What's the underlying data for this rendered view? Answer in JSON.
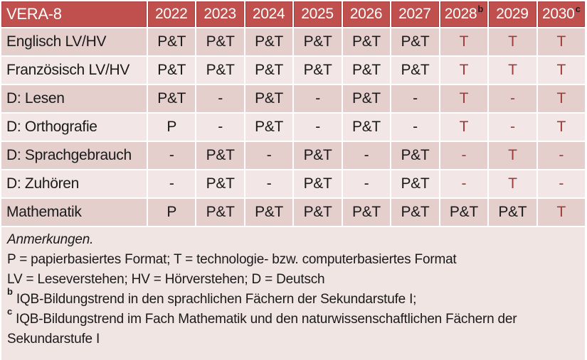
{
  "colors": {
    "header_bg": "#C0504D",
    "header_border": "#AC423F",
    "header_text": "#FFFFFF",
    "row_dark": "#E5CFCD",
    "row_light": "#F2E7E6",
    "notes_bg": "#F1E5E4",
    "text": "#1A1A1A",
    "tech_red": "#9E3B38"
  },
  "table": {
    "title": "VERA-8",
    "columns": [
      {
        "label": "2022"
      },
      {
        "label": "2023"
      },
      {
        "label": "2024"
      },
      {
        "label": "2025"
      },
      {
        "label": "2026"
      },
      {
        "label": "2027"
      },
      {
        "label": "2028",
        "sup": "b"
      },
      {
        "label": "2029"
      },
      {
        "label": "2030",
        "sup": "c"
      }
    ],
    "rows": [
      {
        "label": "Englisch LV/HV",
        "cells": [
          {
            "v": "P&T"
          },
          {
            "v": "P&T"
          },
          {
            "v": "P&T"
          },
          {
            "v": "P&T"
          },
          {
            "v": "P&T"
          },
          {
            "v": "P&T"
          },
          {
            "v": "T",
            "red": true
          },
          {
            "v": "T",
            "red": true
          },
          {
            "v": "T",
            "red": true
          }
        ]
      },
      {
        "label": "Französisch LV/HV",
        "cells": [
          {
            "v": "P&T"
          },
          {
            "v": "P&T"
          },
          {
            "v": "P&T"
          },
          {
            "v": "P&T"
          },
          {
            "v": "P&T"
          },
          {
            "v": "P&T"
          },
          {
            "v": "T",
            "red": true
          },
          {
            "v": "T",
            "red": true
          },
          {
            "v": "T",
            "red": true
          }
        ]
      },
      {
        "label": "D: Lesen",
        "cells": [
          {
            "v": "P&T"
          },
          {
            "v": "-"
          },
          {
            "v": "P&T"
          },
          {
            "v": "-"
          },
          {
            "v": "P&T"
          },
          {
            "v": "-"
          },
          {
            "v": "T",
            "red": true
          },
          {
            "v": "-",
            "red": true
          },
          {
            "v": "T",
            "red": true
          }
        ]
      },
      {
        "label": "D: Orthografie",
        "cells": [
          {
            "v": "P"
          },
          {
            "v": "-"
          },
          {
            "v": "P&T"
          },
          {
            "v": "-"
          },
          {
            "v": "P&T"
          },
          {
            "v": "-"
          },
          {
            "v": "T",
            "red": true
          },
          {
            "v": "-",
            "red": true
          },
          {
            "v": "T",
            "red": true
          }
        ]
      },
      {
        "label": "D: Sprachgebrauch",
        "cells": [
          {
            "v": "-"
          },
          {
            "v": "P&T"
          },
          {
            "v": "-"
          },
          {
            "v": "P&T"
          },
          {
            "v": "-"
          },
          {
            "v": "P&T"
          },
          {
            "v": "-",
            "red": true
          },
          {
            "v": "T",
            "red": true
          },
          {
            "v": "-",
            "red": true
          }
        ]
      },
      {
        "label": "D: Zuhören",
        "cells": [
          {
            "v": "-"
          },
          {
            "v": "P&T"
          },
          {
            "v": "-"
          },
          {
            "v": "P&T"
          },
          {
            "v": "-"
          },
          {
            "v": "P&T"
          },
          {
            "v": "-",
            "red": true
          },
          {
            "v": "T",
            "red": true
          },
          {
            "v": "-",
            "red": true
          }
        ]
      },
      {
        "label": "Mathematik",
        "cells": [
          {
            "v": "P"
          },
          {
            "v": "P&T"
          },
          {
            "v": "P&T"
          },
          {
            "v": "P&T"
          },
          {
            "v": "P&T"
          },
          {
            "v": "P&T"
          },
          {
            "v": "P&T"
          },
          {
            "v": "P&T"
          },
          {
            "v": "T",
            "red": true
          }
        ]
      }
    ]
  },
  "notes": {
    "heading": "Anmerkungen.",
    "formats": "P = papierbasiertes Format; T = technologie- bzw. computerbasiertes Format",
    "abbreviations": "LV = Leseverstehen; HV = Hörverstehen; D = Deutsch",
    "note_b": {
      "sup": "b",
      "text": "IQB-Bildungstrend in den sprachlichen Fächern der Sekundarstufe I;"
    },
    "note_c": {
      "sup": "c",
      "text": "IQB-Bildungstrend im Fach Mathematik und den naturwissenschaftlichen Fächern der Sekundarstufe I"
    }
  }
}
